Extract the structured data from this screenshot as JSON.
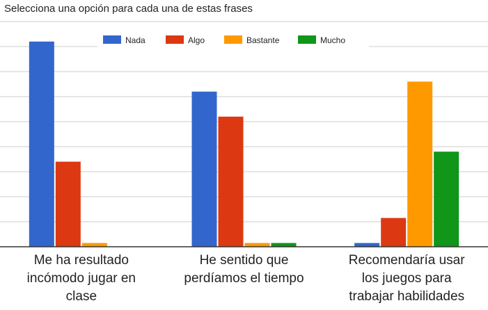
{
  "chart_data": {
    "type": "bar",
    "title": "Selecciona una opción para cada una de estas frases",
    "xlabel": "",
    "ylabel": "",
    "categories": [
      [
        "Me ha resultado",
        "incómodo jugar en",
        "clase"
      ],
      [
        "He sentido que",
        "perdíamos el tiempo"
      ],
      [
        "Recomendaría usar",
        "los juegos para",
        "trabajar habilidades"
      ]
    ],
    "series": [
      {
        "name": "Nada",
        "color": "#3366cc",
        "values": [
          8.2,
          6.2,
          0.15
        ]
      },
      {
        "name": "Algo",
        "color": "#dc3912",
        "values": [
          3.4,
          5.2,
          1.15
        ]
      },
      {
        "name": "Bastante",
        "color": "#ff9900",
        "values": [
          0.15,
          0.15,
          6.6
        ]
      },
      {
        "name": "Mucho",
        "color": "#109618",
        "values": [
          0,
          0.15,
          3.8
        ]
      }
    ],
    "ylim": [
      0,
      9
    ],
    "grid": true,
    "legend_position": "top"
  }
}
